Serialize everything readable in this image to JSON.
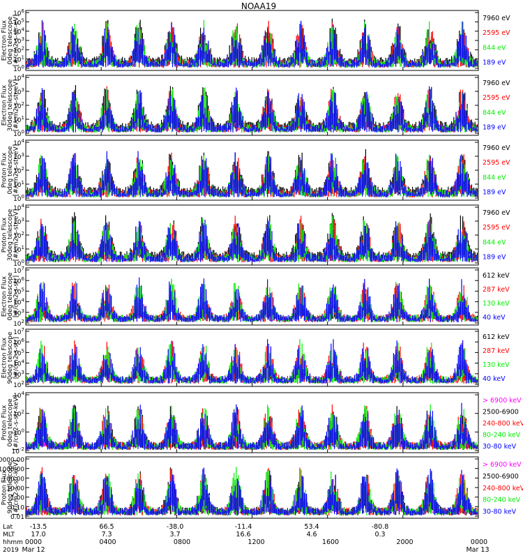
{
  "title": "NOAA19",
  "colors": {
    "black": "#000000",
    "red": "#ff0000",
    "green": "#00ee00",
    "blue": "#0000ff",
    "magenta": "#ff00ff"
  },
  "footer": {
    "row_labels": [
      "Lat",
      "MLT",
      "hhmm",
      "2019"
    ],
    "lat": [
      "-13.5",
      "66.5",
      "-38.0",
      "-11.4",
      "53.4",
      "-80.8"
    ],
    "mlt": [
      "17.0",
      "7.3",
      "3.7",
      "16.6",
      "4.6",
      "0.3"
    ],
    "hhmm": [
      "0000",
      "0400",
      "0800",
      "1200",
      "1600",
      "2000",
      "0000"
    ],
    "date_start": "Mar 12",
    "date_end": "Mar 13"
  },
  "chart_data": [
    {
      "type": "line",
      "instrument": "TED",
      "ylabel": [
        "TED",
        "Electron Flux",
        "0deg telescope",
        "[#/cm2-s-str-eV]"
      ],
      "ylim": [
        1,
        1000000
      ],
      "yscale": "log",
      "ytick_labels": [
        "10^0",
        "10^1",
        "10^2",
        "10^3",
        "10^4",
        "10^5",
        "10^6"
      ],
      "series": [
        {
          "name": "7960 eV",
          "color": "#000000"
        },
        {
          "name": "2595 eV",
          "color": "#ff0000"
        },
        {
          "name": "844 eV",
          "color": "#00ee00"
        },
        {
          "name": "189 eV",
          "color": "#0000ff"
        }
      ]
    },
    {
      "type": "line",
      "instrument": "TED",
      "ylabel": [
        "TED",
        "Electron Flux",
        "30deg telescope",
        "[#/cm2-s-str-eV]"
      ],
      "ylim": [
        1,
        100000
      ],
      "yscale": "log",
      "ytick_labels": [
        "10^0",
        "10^1",
        "10^2",
        "10^3",
        "10^4"
      ],
      "series": [
        {
          "name": "7960 eV",
          "color": "#000000"
        },
        {
          "name": "2595 eV",
          "color": "#ff0000"
        },
        {
          "name": "844 eV",
          "color": "#00ee00"
        },
        {
          "name": "189 eV",
          "color": "#0000ff"
        }
      ]
    },
    {
      "type": "line",
      "instrument": "TED",
      "ylabel": [
        "TED",
        "Proton Flux",
        "0deg telescope",
        "[#/cm2-s-str-eV]"
      ],
      "ylim": [
        1,
        100000
      ],
      "yscale": "log",
      "ytick_labels": [
        "10^0",
        "10^1",
        "10^2",
        "10^3",
        "10^4"
      ],
      "series": [
        {
          "name": "7960 eV",
          "color": "#000000"
        },
        {
          "name": "2595 eV",
          "color": "#ff0000"
        },
        {
          "name": "844 eV",
          "color": "#00ee00"
        },
        {
          "name": "189 eV",
          "color": "#0000ff"
        }
      ]
    },
    {
      "type": "line",
      "instrument": "TED",
      "ylabel": [
        "TED",
        "Proton Flux",
        "30deg telescope",
        "[#/cm2-s-str-eV]"
      ],
      "ylim": [
        1,
        100000
      ],
      "yscale": "log",
      "ytick_labels": [
        "10^0",
        "10^1",
        "10^2",
        "10^3",
        "10^4"
      ],
      "series": [
        {
          "name": "7960 eV",
          "color": "#000000"
        },
        {
          "name": "2595 eV",
          "color": "#ff0000"
        },
        {
          "name": "844 eV",
          "color": "#00ee00"
        },
        {
          "name": "189 eV",
          "color": "#0000ff"
        }
      ]
    },
    {
      "type": "line",
      "instrument": "MEPED",
      "ylabel": [
        "MEPED",
        "Electron Flux",
        "0deg telescope",
        "[#/cm2-s-str]"
      ],
      "ylim": [
        100,
        10000000
      ],
      "yscale": "log",
      "ytick_labels": [
        "10^2",
        "10^3",
        "10^4",
        "10^5",
        "10^6",
        "10^7"
      ],
      "series": [
        {
          "name": "612 keV",
          "color": "#000000"
        },
        {
          "name": "287 keV",
          "color": "#ff0000"
        },
        {
          "name": "130 keV",
          "color": "#00ee00"
        },
        {
          "name": "40 keV",
          "color": "#0000ff"
        }
      ]
    },
    {
      "type": "line",
      "instrument": "MEPED",
      "ylabel": [
        "MEPED",
        "Electron Flux",
        "90deg telescope",
        "[#/cm2-s-str]"
      ],
      "ylim": [
        100,
        10000000
      ],
      "yscale": "log",
      "ytick_labels": [
        "10^2",
        "10^3",
        "10^4",
        "10^5",
        "10^6",
        "10^7"
      ],
      "series": [
        {
          "name": "612 keV",
          "color": "#000000"
        },
        {
          "name": "287 keV",
          "color": "#ff0000"
        },
        {
          "name": "130 keV",
          "color": "#00ee00"
        },
        {
          "name": "40 keV",
          "color": "#0000ff"
        }
      ]
    },
    {
      "type": "line",
      "instrument": "MEPED",
      "ylabel": [
        "MEPED",
        "Proton Flux",
        "0deg telescope",
        "[#/cm2-s-str-keV]"
      ],
      "ylim": [
        0.01,
        100000
      ],
      "yscale": "log",
      "ytick_labels": [
        "10^-2",
        "10^0",
        "10^2",
        "10^4"
      ],
      "series": [
        {
          "name": "> 6900 keV",
          "color": "#ff00ff"
        },
        {
          "name": "2500-6900",
          "color": "#000000"
        },
        {
          "name": "240-800 keV",
          "color": "#ff0000"
        },
        {
          "name": "80-240 keV",
          "color": "#00ee00"
        },
        {
          "name": "30-80 keV",
          "color": "#0000ff"
        }
      ]
    },
    {
      "type": "line",
      "instrument": "MEPED",
      "ylabel": [
        "MEPED",
        "Proton Flux",
        "90deg telescope",
        "[#/cm2-s-str-keV]"
      ],
      "ylim": [
        0.01,
        10000
      ],
      "yscale": "log",
      "ytick_labels": [
        "10000.00",
        "1000.00",
        "100.00",
        "10.00",
        "1.00",
        "0.10",
        "0.01"
      ],
      "series": [
        {
          "name": "> 6900 keV",
          "color": "#ff00ff"
        },
        {
          "name": "2500-6900",
          "color": "#000000"
        },
        {
          "name": "240-800 keV",
          "color": "#ff0000"
        },
        {
          "name": "80-240 keV",
          "color": "#00ee00"
        },
        {
          "name": "30-80 keV",
          "color": "#0000ff"
        }
      ]
    }
  ]
}
